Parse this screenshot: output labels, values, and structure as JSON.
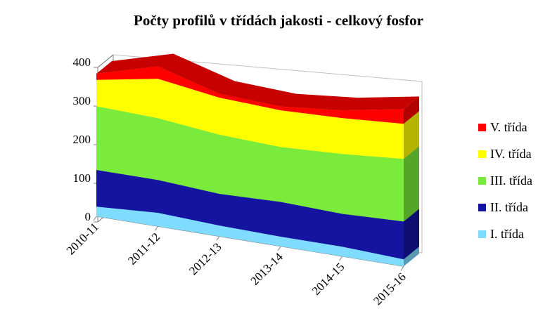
{
  "chart_data": {
    "type": "area",
    "stacked": true,
    "three_d": true,
    "title": "Počty profilů v třídách jakosti - celkový fosfor",
    "categories": [
      "2010-11",
      "2011-12",
      "2012-13",
      "2013-14",
      "2014-15",
      "2015-16"
    ],
    "series": [
      {
        "name": "I. třída",
        "color": "#7fdcff",
        "values": [
          25,
          35,
          28,
          25,
          25,
          18
        ]
      },
      {
        "name": "II. třída",
        "color": "#1414a0",
        "values": [
          95,
          85,
          82,
          90,
          85,
          98
        ]
      },
      {
        "name": "III. třída",
        "color": "#7aeb3a",
        "values": [
          165,
          160,
          153,
          142,
          155,
          162
        ]
      },
      {
        "name": "IV. třída",
        "color": "#ffff00",
        "values": [
          68,
          102,
          96,
          95,
          93,
          91
        ]
      },
      {
        "name": "V. třída",
        "color": "#ff0000",
        "values": [
          16,
          32,
          10,
          10,
          20,
          38
        ]
      }
    ],
    "ylim": [
      0,
      400
    ],
    "yticks": [
      0,
      100,
      200,
      300,
      400
    ],
    "xlabel": "",
    "ylabel": "",
    "grid": false,
    "legend_position": "right"
  }
}
